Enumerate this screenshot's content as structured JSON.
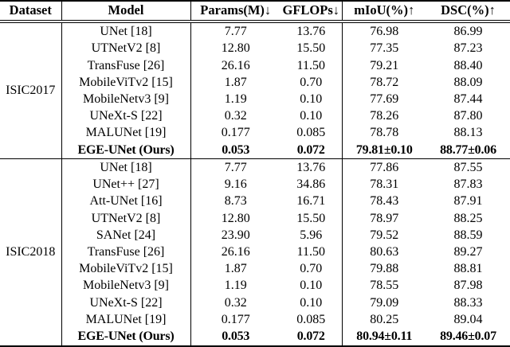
{
  "table": {
    "headers": {
      "dataset": "Dataset",
      "model": "Model",
      "params": "Params(M)↓",
      "gflops": "GFLOPs↓",
      "miou": "mIoU(%)↑",
      "dsc": "DSC(%)↑"
    },
    "sections": [
      {
        "dataset": "ISIC2017",
        "rows": [
          {
            "model": "UNet [18]",
            "params": "7.77",
            "gflops": "13.76",
            "miou": "76.98",
            "dsc": "86.99",
            "bold": false
          },
          {
            "model": "UTNetV2 [8]",
            "params": "12.80",
            "gflops": "15.50",
            "miou": "77.35",
            "dsc": "87.23",
            "bold": false
          },
          {
            "model": "TransFuse [26]",
            "params": "26.16",
            "gflops": "11.50",
            "miou": "79.21",
            "dsc": "88.40",
            "bold": false
          },
          {
            "model": "MobileViTv2 [15]",
            "params": "1.87",
            "gflops": "0.70",
            "miou": "78.72",
            "dsc": "88.09",
            "bold": false
          },
          {
            "model": "MobileNetv3 [9]",
            "params": "1.19",
            "gflops": "0.10",
            "miou": "77.69",
            "dsc": "87.44",
            "bold": false
          },
          {
            "model": "UNeXt-S [22]",
            "params": "0.32",
            "gflops": "0.10",
            "miou": "78.26",
            "dsc": "87.80",
            "bold": false
          },
          {
            "model": "MALUNet [19]",
            "params": "0.177",
            "gflops": "0.085",
            "miou": "78.78",
            "dsc": "88.13",
            "bold": false
          },
          {
            "model": "EGE-UNet (Ours)",
            "params": "0.053",
            "gflops": "0.072",
            "miou": "79.81±0.10",
            "dsc": "88.77±0.06",
            "bold": true
          }
        ]
      },
      {
        "dataset": "ISIC2018",
        "rows": [
          {
            "model": "UNet [18]",
            "params": "7.77",
            "gflops": "13.76",
            "miou": "77.86",
            "dsc": "87.55",
            "bold": false
          },
          {
            "model": "UNet++ [27]",
            "params": "9.16",
            "gflops": "34.86",
            "miou": "78.31",
            "dsc": "87.83",
            "bold": false
          },
          {
            "model": "Att-UNet [16]",
            "params": "8.73",
            "gflops": "16.71",
            "miou": "78.43",
            "dsc": "87.91",
            "bold": false
          },
          {
            "model": "UTNetV2 [8]",
            "params": "12.80",
            "gflops": "15.50",
            "miou": "78.97",
            "dsc": "88.25",
            "bold": false
          },
          {
            "model": "SANet [24]",
            "params": "23.90",
            "gflops": "5.96",
            "miou": "79.52",
            "dsc": "88.59",
            "bold": false
          },
          {
            "model": "TransFuse [26]",
            "params": "26.16",
            "gflops": "11.50",
            "miou": "80.63",
            "dsc": "89.27",
            "bold": false
          },
          {
            "model": "MobileViTv2 [15]",
            "params": "1.87",
            "gflops": "0.70",
            "miou": "79.88",
            "dsc": "88.81",
            "bold": false
          },
          {
            "model": "MobileNetv3 [9]",
            "params": "1.19",
            "gflops": "0.10",
            "miou": "78.55",
            "dsc": "87.98",
            "bold": false
          },
          {
            "model": "UNeXt-S [22]",
            "params": "0.32",
            "gflops": "0.10",
            "miou": "79.09",
            "dsc": "88.33",
            "bold": false
          },
          {
            "model": "MALUNet [19]",
            "params": "0.177",
            "gflops": "0.085",
            "miou": "80.25",
            "dsc": "89.04",
            "bold": false
          },
          {
            "model": "EGE-UNet (Ours)",
            "params": "0.053",
            "gflops": "0.072",
            "miou": "80.94±0.11",
            "dsc": "89.46±0.07",
            "bold": true
          }
        ]
      }
    ]
  },
  "colors": {
    "text": "#000000",
    "rule": "#000000",
    "background": "#ffffff"
  }
}
